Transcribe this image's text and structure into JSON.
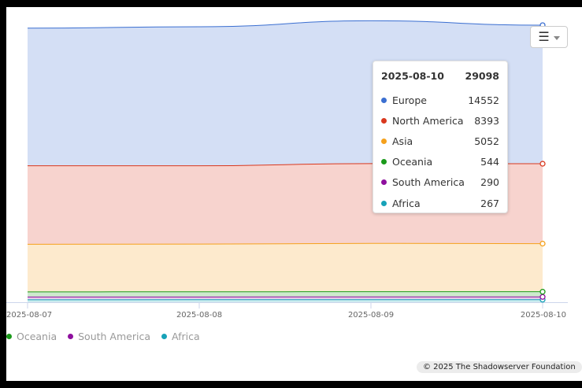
{
  "chart_data": {
    "type": "area",
    "stacked": true,
    "x": [
      "2025-08-07",
      "2025-08-08",
      "2025-08-09",
      "2025-08-10"
    ],
    "series": [
      {
        "name": "Africa",
        "color": "#17a2b8",
        "values": [
          262,
          264,
          268,
          267
        ]
      },
      {
        "name": "South America",
        "color": "#8e0f9e",
        "values": [
          285,
          288,
          292,
          290
        ]
      },
      {
        "name": "Oceania",
        "color": "#1a9a1a",
        "values": [
          540,
          542,
          546,
          544
        ]
      },
      {
        "name": "Asia",
        "color": "#f5a11c",
        "values": [
          5000,
          5010,
          5075,
          5052
        ]
      },
      {
        "name": "North America",
        "color": "#d9381e",
        "values": [
          8250,
          8230,
          8380,
          8393
        ]
      },
      {
        "name": "Europe",
        "color": "#3b6fd1",
        "values": [
          14450,
          14600,
          15000,
          14552
        ]
      }
    ],
    "ylim": [
      0,
      31000
    ],
    "legend_position": "bottom-left",
    "legend_visible": [
      "Oceania",
      "South America",
      "Africa"
    ],
    "grid": false
  },
  "tooltip": {
    "date": "2025-08-10",
    "total": "29098",
    "rows": [
      {
        "name": "Europe",
        "value": "14552",
        "color": "#3b6fd1"
      },
      {
        "name": "North America",
        "value": "8393",
        "color": "#d9381e"
      },
      {
        "name": "Asia",
        "value": "5052",
        "color": "#f5a11c"
      },
      {
        "name": "Oceania",
        "value": "544",
        "color": "#1a9a1a"
      },
      {
        "name": "South America",
        "value": "290",
        "color": "#8e0f9e"
      },
      {
        "name": "Africa",
        "value": "267",
        "color": "#17a2b8"
      }
    ]
  },
  "legend": [
    {
      "name": "Oceania",
      "color": "#1a9a1a"
    },
    {
      "name": "South America",
      "color": "#8e0f9e"
    },
    {
      "name": "Africa",
      "color": "#17a2b8"
    }
  ],
  "menu": {
    "icon": "hamburger-menu-icon",
    "glyph": "☰"
  },
  "credit": "© 2025 The Shadowserver Foundation"
}
